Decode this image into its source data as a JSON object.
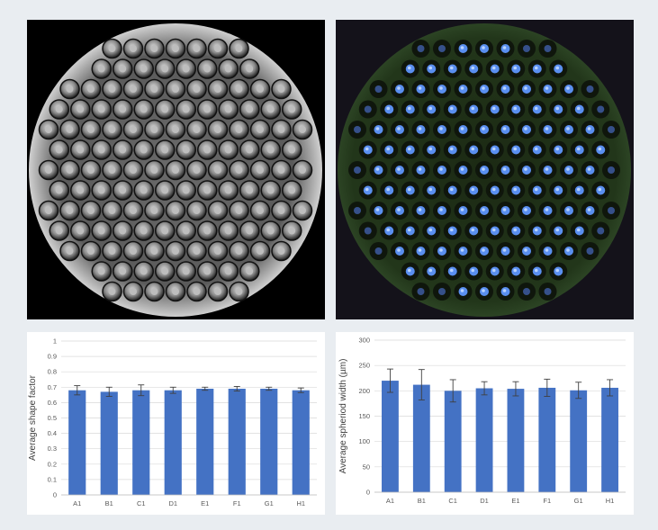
{
  "images": [
    {
      "name": "brightfield-microwell-array",
      "type": "microscopy",
      "description": ""
    },
    {
      "name": "fluorescence-microwell-array",
      "type": "microscopy",
      "description": ""
    }
  ],
  "colors": {
    "bar": "#4472c4",
    "grid": "#d9d9d9",
    "error_bar": "#404040"
  },
  "chart_data": [
    {
      "type": "bar",
      "title": "",
      "xlabel": "",
      "ylabel": "Average shape factor",
      "categories": [
        "A1",
        "B1",
        "C1",
        "D1",
        "E1",
        "F1",
        "G1",
        "H1"
      ],
      "values": [
        0.68,
        0.67,
        0.68,
        0.68,
        0.69,
        0.69,
        0.69,
        0.68
      ],
      "errors": [
        0.03,
        0.03,
        0.035,
        0.02,
        0.01,
        0.015,
        0.01,
        0.015
      ],
      "ylim": [
        0,
        1
      ],
      "yticks": [
        "0",
        "0.1",
        "0.2",
        "0.3",
        "0.4",
        "0.5",
        "0.6",
        "0.7",
        "0.8",
        "0.9",
        "1"
      ],
      "grid": true
    },
    {
      "type": "bar",
      "title": "",
      "xlabel": "",
      "ylabel": "Average spheriod width (µm)",
      "categories": [
        "A1",
        "B1",
        "C1",
        "D1",
        "E1",
        "F1",
        "G1",
        "H1"
      ],
      "values": [
        220,
        212,
        200,
        205,
        204,
        206,
        201,
        206
      ],
      "errors": [
        23,
        30,
        22,
        13,
        14,
        17,
        16,
        16
      ],
      "ylim": [
        0,
        300
      ],
      "yticks": [
        "0",
        "50",
        "100",
        "150",
        "200",
        "250",
        "300"
      ],
      "grid": true
    }
  ]
}
